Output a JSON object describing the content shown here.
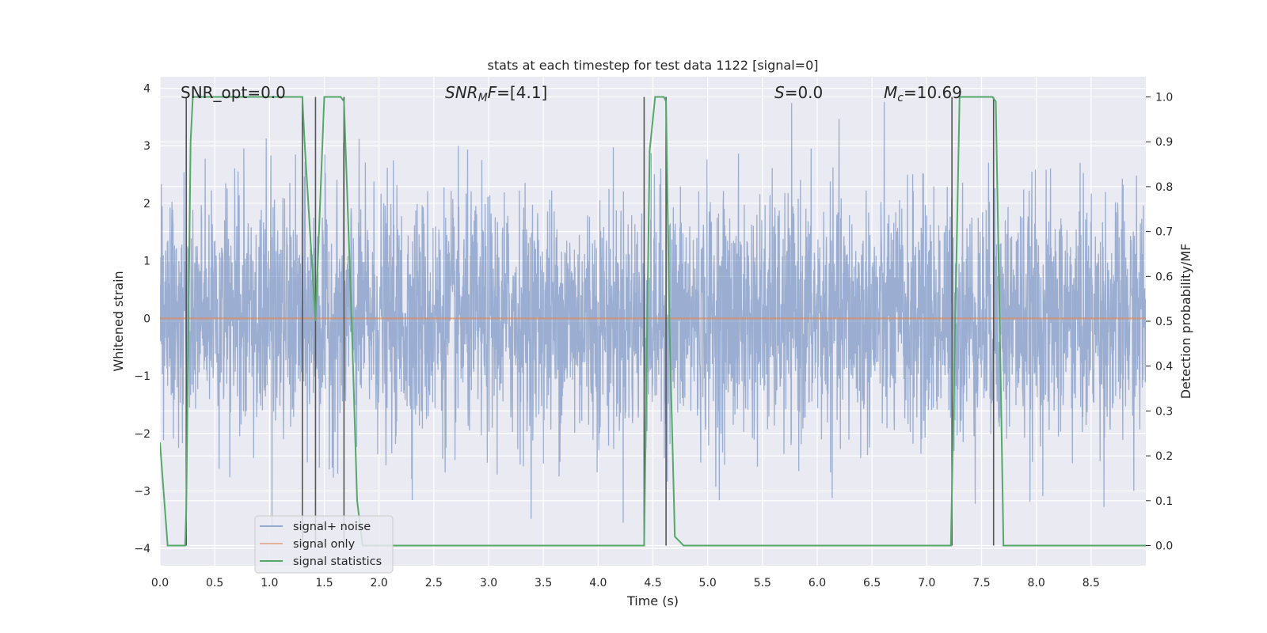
{
  "chart_data": {
    "type": "line",
    "title": "stats at each timestep for test data 1122 [signal=0]",
    "xlabel": "Time (s)",
    "ylabel": "Whitened strain",
    "y2label": "Detection probability/MF",
    "xlim": [
      0.0,
      9.0
    ],
    "ylim": [
      -4.3,
      4.2
    ],
    "y2lim": [
      -0.045,
      1.045
    ],
    "xticks": [
      "0.0",
      "0.5",
      "1.0",
      "1.5",
      "2.0",
      "2.5",
      "3.0",
      "3.5",
      "4.0",
      "4.5",
      "5.0",
      "5.5",
      "6.0",
      "6.5",
      "7.0",
      "7.5",
      "8.0",
      "8.5"
    ],
    "yticks": [
      "4",
      "3",
      "2",
      "1",
      "0",
      "−1",
      "−2",
      "−3",
      "−4"
    ],
    "y2ticks": [
      "1.0",
      "0.9",
      "0.8",
      "0.7",
      "0.6",
      "0.5",
      "0.4",
      "0.3",
      "0.2",
      "0.1",
      "0.0"
    ],
    "grid": true,
    "legend_placement": "lower-left",
    "annotations": {
      "snr_opt": "SNR_opt=0.0",
      "snr_mf_base": "SNR",
      "snr_mf_sub": "M",
      "snr_mf_rest": "F=[4.1]",
      "s_var": "S",
      "s_rest": "=0.0",
      "mc_var": "M",
      "mc_sub": "c",
      "mc_rest": "=10.69"
    },
    "series": [
      {
        "name": "signal+ noise",
        "color": "#4c72b0",
        "description": "whitened noise, amplitude mostly within ±2.5, peaks near ±3.8",
        "amplitude_envelope": [
          -3.8,
          3.8
        ]
      },
      {
        "name": "signal only",
        "color": "#dd8452",
        "x": [
          0.0,
          9.0
        ],
        "y": [
          0.0,
          0.0
        ]
      },
      {
        "name": "signal statistics",
        "color": "#55a868",
        "axis": "right",
        "x": [
          0.0,
          0.07,
          0.23,
          0.24,
          0.28,
          0.3,
          1.3,
          1.32,
          1.42,
          1.5,
          1.65,
          1.68,
          1.75,
          1.8,
          1.85,
          4.35,
          4.42,
          4.47,
          4.52,
          4.6,
          4.62,
          4.65,
          4.7,
          4.78,
          6.7,
          6.78,
          7.22,
          7.26,
          7.3,
          7.35,
          7.6,
          7.63,
          7.68,
          7.7,
          9.0
        ],
        "y": [
          0.23,
          0.0,
          0.0,
          0.08,
          0.9,
          1.0,
          1.0,
          0.9,
          0.5,
          1.0,
          1.0,
          0.99,
          0.5,
          0.1,
          0.0,
          0.0,
          0.0,
          0.88,
          1.0,
          1.0,
          0.99,
          0.5,
          0.02,
          0.0,
          0.0,
          0.0,
          0.0,
          0.5,
          1.0,
          1.0,
          1.0,
          0.99,
          0.3,
          0.0,
          0.0
        ]
      }
    ],
    "vlines": {
      "color": "#555555",
      "y2_range": [
        0.0,
        1.0
      ],
      "x": [
        0.24,
        1.3,
        1.42,
        1.68,
        4.42,
        4.62,
        7.23,
        7.61
      ]
    }
  }
}
